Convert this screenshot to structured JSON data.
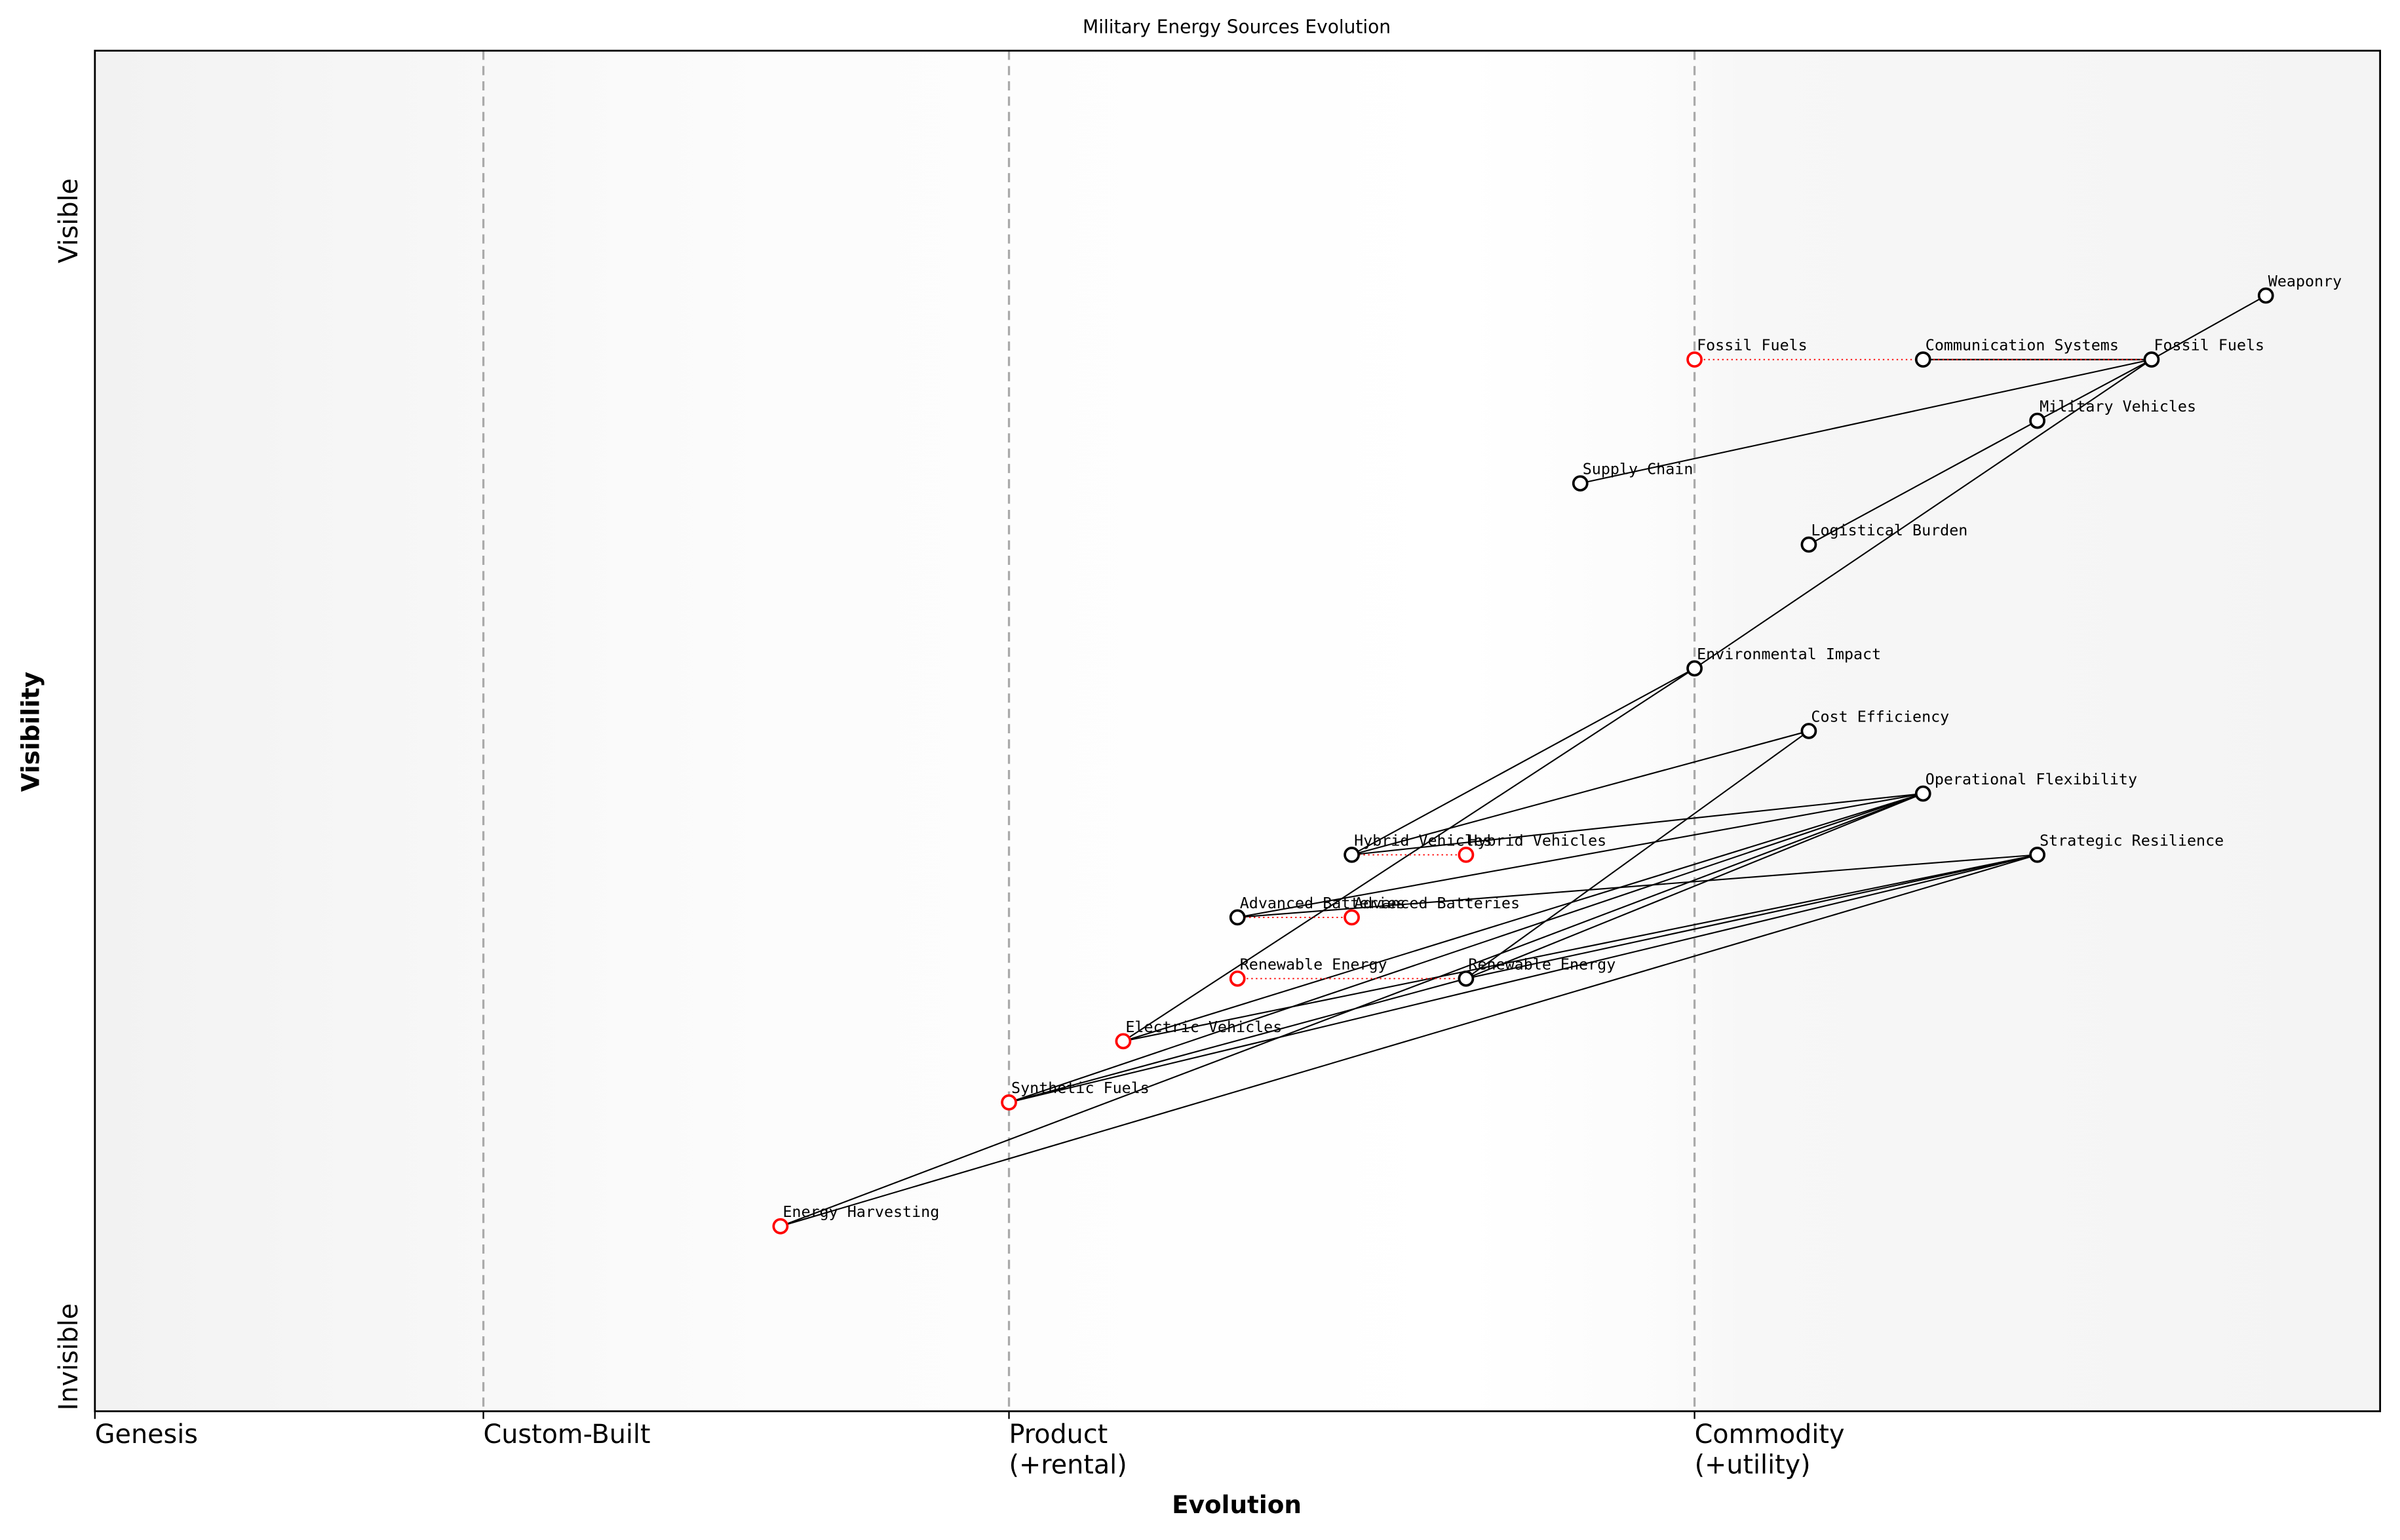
{
  "chart_data": {
    "type": "wardley",
    "title": "Military Energy Sources Evolution",
    "xlabel": "Evolution",
    "ylabel": "Visibility",
    "xlim": [
      0,
      1
    ],
    "ylim": [
      0,
      1
    ],
    "xticks": [
      {
        "value": 0,
        "label": "Genesis"
      },
      {
        "value": 0.17,
        "label": "Custom-Built"
      },
      {
        "value": 0.4,
        "label": "Product\n(+rental)"
      },
      {
        "value": 0.7,
        "label": "Commodity\n(+utility)"
      }
    ],
    "yticks": [
      {
        "value": 0.875,
        "label": "Visible"
      },
      {
        "value": 0.04,
        "label": "Invisible"
      }
    ],
    "nodes": [
      {
        "name": "Weaponry",
        "x": 0.95,
        "y": 0.82,
        "color": "#000000"
      },
      {
        "name": "Fossil Fuels",
        "x": 0.9,
        "y": 0.773,
        "color": "#000000"
      },
      {
        "name": "Communication Systems",
        "x": 0.8,
        "y": 0.773,
        "color": "#000000"
      },
      {
        "name": "Military Vehicles",
        "x": 0.85,
        "y": 0.728,
        "color": "#000000"
      },
      {
        "name": "Supply Chain",
        "x": 0.65,
        "y": 0.682,
        "color": "#000000"
      },
      {
        "name": "Logistical Burden",
        "x": 0.75,
        "y": 0.637,
        "color": "#000000"
      },
      {
        "name": "Environmental Impact",
        "x": 0.7,
        "y": 0.546,
        "color": "#000000"
      },
      {
        "name": "Cost Efficiency",
        "x": 0.75,
        "y": 0.5,
        "color": "#000000"
      },
      {
        "name": "Operational Flexibility",
        "x": 0.8,
        "y": 0.454,
        "color": "#000000"
      },
      {
        "name": "Strategic Resilience",
        "x": 0.85,
        "y": 0.409,
        "color": "#000000"
      },
      {
        "name": "Hybrid Vehicles",
        "x": 0.55,
        "y": 0.409,
        "color": "#000000"
      },
      {
        "name": "Advanced Batteries",
        "x": 0.5,
        "y": 0.363,
        "color": "#000000"
      },
      {
        "name": "Renewable Energy",
        "x": 0.6,
        "y": 0.318,
        "color": "#000000"
      },
      {
        "name": "Fossil Fuels",
        "x": 0.7,
        "y": 0.773,
        "color": "#ff0000"
      },
      {
        "name": "Hybrid Vehicles",
        "x": 0.6,
        "y": 0.409,
        "color": "#ff0000"
      },
      {
        "name": "Advanced Batteries",
        "x": 0.55,
        "y": 0.363,
        "color": "#ff0000"
      },
      {
        "name": "Renewable Energy",
        "x": 0.5,
        "y": 0.318,
        "color": "#ff0000"
      },
      {
        "name": "Electric Vehicles",
        "x": 0.45,
        "y": 0.272,
        "color": "#ff0000"
      },
      {
        "name": "Synthetic Fuels",
        "x": 0.4,
        "y": 0.227,
        "color": "#ff0000"
      },
      {
        "name": "Energy Harvesting",
        "x": 0.3,
        "y": 0.136,
        "color": "#ff0000"
      }
    ],
    "links": [
      [
        "Weaponry",
        "Fossil Fuels"
      ],
      [
        "Fossil Fuels",
        "Military Vehicles"
      ],
      [
        "Military Vehicles",
        "Logistical Burden"
      ],
      [
        "Fossil Fuels",
        "Communication Systems"
      ],
      [
        "Fossil Fuels",
        "Supply Chain"
      ],
      [
        "Fossil Fuels",
        "Environmental Impact"
      ],
      [
        "Environmental Impact",
        "Electric Vehicles"
      ],
      [
        "Environmental Impact",
        "Hybrid Vehicles"
      ],
      [
        "Cost Efficiency",
        "Hybrid Vehicles"
      ],
      [
        "Cost Efficiency",
        "Renewable Energy"
      ],
      [
        "Operational Flexibility",
        "Hybrid Vehicles"
      ],
      [
        "Operational Flexibility",
        "Advanced Batteries"
      ],
      [
        "Operational Flexibility",
        "Renewable Energy"
      ],
      [
        "Operational Flexibility",
        "Synthetic Fuels"
      ],
      [
        "Operational Flexibility",
        "Energy Harvesting"
      ],
      [
        "Operational Flexibility",
        "Electric Vehicles"
      ],
      [
        "Strategic Resilience",
        "Advanced Batteries"
      ],
      [
        "Strategic Resilience",
        "Renewable Energy"
      ],
      [
        "Strategic Resilience",
        "Electric Vehicles"
      ],
      [
        "Strategic Resilience",
        "Synthetic Fuels"
      ],
      [
        "Strategic Resilience",
        "Energy Harvesting"
      ],
      [
        "Synthetic Fuels",
        "Renewable Energy"
      ]
    ],
    "evolve": [
      "Fossil Fuels",
      "Hybrid Vehicles",
      "Advanced Batteries",
      "Renewable Energy"
    ]
  }
}
